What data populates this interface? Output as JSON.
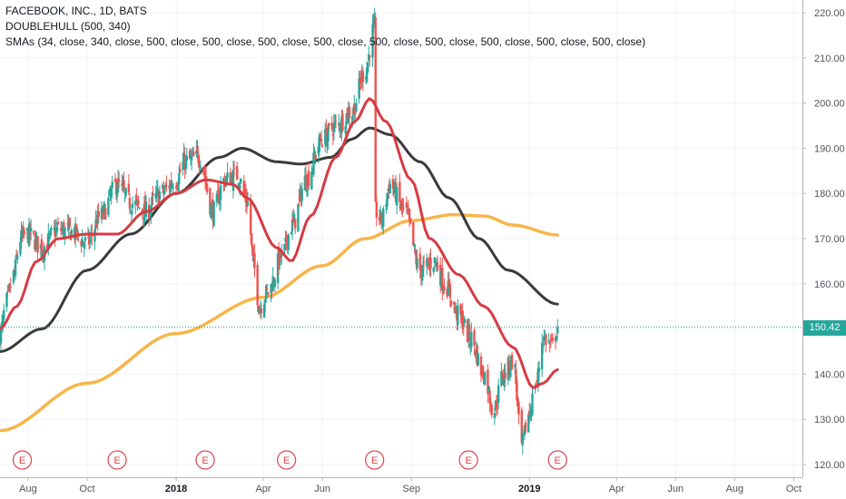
{
  "header": {
    "title_line": "FACEBOOK, INC., 1D, BATS",
    "indicator_doublehull": "DOUBLEHULL (500, 340)",
    "indicator_smas": "SMAs (34, close, 340, close, 500, close, 500, close, 500, close, 500, close, 500, close, 500, close, 500, close, 500, close, 500, close)"
  },
  "last_price": "150.42",
  "colors": {
    "up": "#26a69a",
    "down": "#ef5350",
    "sma34": "#d63b43",
    "sma340": "#f7b54a",
    "hull": "#3a3a3a",
    "earnings": "#e0434d",
    "grid": "#f0f3fa",
    "axis_text": "#50535e"
  },
  "chart_data": {
    "type": "candlestick",
    "title": "FACEBOOK, INC., 1D, BATS",
    "ylim": [
      117.5,
      222.5
    ],
    "xlim": [
      "2017-07-03",
      "2019-10-10"
    ],
    "y_ticks": [
      "120.00",
      "130.00",
      "140.00",
      "150.00",
      "160.00",
      "170.00",
      "180.00",
      "190.00",
      "200.00",
      "210.00",
      "220.00"
    ],
    "x_ticks": [
      {
        "date": "2017-08-01",
        "label": "Aug",
        "bold": false
      },
      {
        "date": "2017-10-01",
        "label": "Oct",
        "bold": false
      },
      {
        "date": "2018-01-01",
        "label": "2018",
        "bold": true
      },
      {
        "date": "2018-04-01",
        "label": "Apr",
        "bold": false
      },
      {
        "date": "2018-06-01",
        "label": "Jun",
        "bold": false
      },
      {
        "date": "2018-09-01",
        "label": "Sep",
        "bold": false
      },
      {
        "date": "2019-01-01",
        "label": "2019",
        "bold": true
      },
      {
        "date": "2019-04-01",
        "label": "Apr",
        "bold": false
      },
      {
        "date": "2019-06-01",
        "label": "Jun",
        "bold": false
      },
      {
        "date": "2019-08-01",
        "label": "Aug",
        "bold": false
      },
      {
        "date": "2019-10-01",
        "label": "Oct",
        "bold": false
      }
    ],
    "last_price": 150.42,
    "close_anchors": [
      [
        "2017-07-03",
        149.0
      ],
      [
        "2017-07-10",
        156.0
      ],
      [
        "2017-07-17",
        162.0
      ],
      [
        "2017-07-24",
        170.0
      ],
      [
        "2017-08-01",
        171.0
      ],
      [
        "2017-08-15",
        168.0
      ],
      [
        "2017-09-01",
        172.0
      ],
      [
        "2017-09-15",
        171.5
      ],
      [
        "2017-10-01",
        169.0
      ],
      [
        "2017-10-15",
        175.0
      ],
      [
        "2017-11-01",
        182.0
      ],
      [
        "2017-11-15",
        178.0
      ],
      [
        "2017-12-01",
        176.0
      ],
      [
        "2017-12-15",
        180.0
      ],
      [
        "2018-01-01",
        183.0
      ],
      [
        "2018-01-10",
        187.0
      ],
      [
        "2018-01-25",
        188.0
      ],
      [
        "2018-02-08",
        176.0
      ],
      [
        "2018-02-20",
        183.0
      ],
      [
        "2018-03-05",
        184.0
      ],
      [
        "2018-03-16",
        178.0
      ],
      [
        "2018-03-22",
        164.0
      ],
      [
        "2018-03-28",
        155.0
      ],
      [
        "2018-04-05",
        158.0
      ],
      [
        "2018-04-20",
        166.0
      ],
      [
        "2018-05-01",
        173.0
      ],
      [
        "2018-05-15",
        183.0
      ],
      [
        "2018-06-01",
        192.0
      ],
      [
        "2018-06-15",
        195.0
      ],
      [
        "2018-07-01",
        198.0
      ],
      [
        "2018-07-15",
        207.0
      ],
      [
        "2018-07-25",
        217.0
      ],
      [
        "2018-07-26",
        176.0
      ],
      [
        "2018-08-01",
        174.0
      ],
      [
        "2018-08-10",
        182.0
      ],
      [
        "2018-08-25",
        176.0
      ],
      [
        "2018-09-10",
        163.0
      ],
      [
        "2018-09-25",
        165.0
      ],
      [
        "2018-10-05",
        160.0
      ],
      [
        "2018-10-20",
        153.0
      ],
      [
        "2018-11-01",
        148.0
      ],
      [
        "2018-11-15",
        140.0
      ],
      [
        "2018-11-25",
        132.0
      ],
      [
        "2018-12-05",
        140.0
      ],
      [
        "2018-12-15",
        143.0
      ],
      [
        "2018-12-24",
        124.0
      ],
      [
        "2018-12-31",
        131.0
      ],
      [
        "2019-01-08",
        138.0
      ],
      [
        "2019-01-15",
        148.0
      ],
      [
        "2019-01-25",
        146.0
      ],
      [
        "2019-01-30",
        150.42
      ]
    ],
    "sma34": [
      [
        "2017-07-03",
        150.0
      ],
      [
        "2017-07-20",
        155.0
      ],
      [
        "2017-08-10",
        165.0
      ],
      [
        "2017-09-01",
        170.0
      ],
      [
        "2017-10-01",
        171.0
      ],
      [
        "2017-11-01",
        171.0
      ],
      [
        "2017-12-01",
        176.0
      ],
      [
        "2018-01-01",
        180.0
      ],
      [
        "2018-02-01",
        183.0
      ],
      [
        "2018-03-01",
        182.0
      ],
      [
        "2018-03-15",
        179.0
      ],
      [
        "2018-04-15",
        168.0
      ],
      [
        "2018-04-30",
        165.0
      ],
      [
        "2018-05-20",
        175.0
      ],
      [
        "2018-06-15",
        188.0
      ],
      [
        "2018-07-05",
        196.0
      ],
      [
        "2018-07-20",
        201.0
      ],
      [
        "2018-08-05",
        196.0
      ],
      [
        "2018-09-01",
        183.0
      ],
      [
        "2018-09-20",
        170.0
      ],
      [
        "2018-10-20",
        162.0
      ],
      [
        "2018-11-15",
        155.0
      ],
      [
        "2018-12-15",
        146.0
      ],
      [
        "2019-01-05",
        137.0
      ],
      [
        "2019-01-15",
        138.0
      ],
      [
        "2019-01-30",
        141.0
      ]
    ],
    "sma340": [
      [
        "2017-07-03",
        127.5
      ],
      [
        "2017-10-01",
        138.0
      ],
      [
        "2018-01-01",
        149.0
      ],
      [
        "2018-04-01",
        157.0
      ],
      [
        "2018-06-01",
        164.0
      ],
      [
        "2018-07-15",
        170.0
      ],
      [
        "2018-09-01",
        174.0
      ],
      [
        "2018-10-15",
        175.3
      ],
      [
        "2018-11-15",
        175.0
      ],
      [
        "2018-12-15",
        173.0
      ],
      [
        "2019-01-30",
        170.8
      ]
    ],
    "doublehull": [
      [
        "2017-07-03",
        145.0
      ],
      [
        "2017-08-15",
        150.0
      ],
      [
        "2017-10-01",
        163.0
      ],
      [
        "2017-11-15",
        171.0
      ],
      [
        "2018-01-01",
        180.0
      ],
      [
        "2018-02-15",
        188.0
      ],
      [
        "2018-03-10",
        190.0
      ],
      [
        "2018-04-15",
        187.0
      ],
      [
        "2018-05-10",
        186.5
      ],
      [
        "2018-06-10",
        188.0
      ],
      [
        "2018-07-01",
        192.0
      ],
      [
        "2018-07-20",
        194.5
      ],
      [
        "2018-08-10",
        193.0
      ],
      [
        "2018-09-10",
        187.0
      ],
      [
        "2018-10-10",
        179.0
      ],
      [
        "2018-11-10",
        170.0
      ],
      [
        "2018-12-10",
        163.0
      ],
      [
        "2019-01-30",
        155.5
      ]
    ],
    "earnings_dates": [
      "2017-07-26",
      "2017-11-01",
      "2018-01-31",
      "2018-04-25",
      "2018-07-25",
      "2018-10-30",
      "2019-01-30"
    ],
    "earnings_label": "E"
  }
}
